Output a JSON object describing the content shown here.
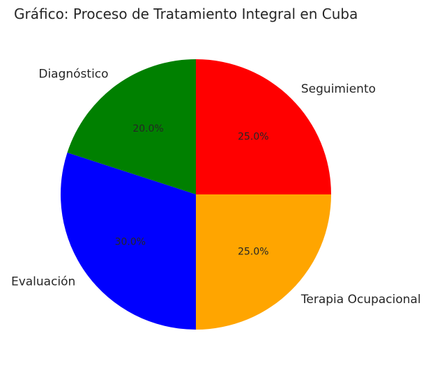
{
  "chart_data": {
    "type": "pie",
    "title": "Gráfico: Proceso de Tratamiento Integral en Cuba",
    "categories": [
      "Diagnóstico",
      "Evaluación",
      "Terapia Ocupacional",
      "Seguimiento"
    ],
    "values": [
      20.0,
      30.0,
      25.0,
      25.0
    ],
    "value_labels": [
      "20.0%",
      "30.0%",
      "25.0%",
      "25.0%"
    ],
    "colors": [
      "#008000",
      "#0000ff",
      "#ffa500",
      "#ff0000"
    ],
    "start_angle_deg": 90,
    "direction": "counterclockwise",
    "legend": "none"
  }
}
